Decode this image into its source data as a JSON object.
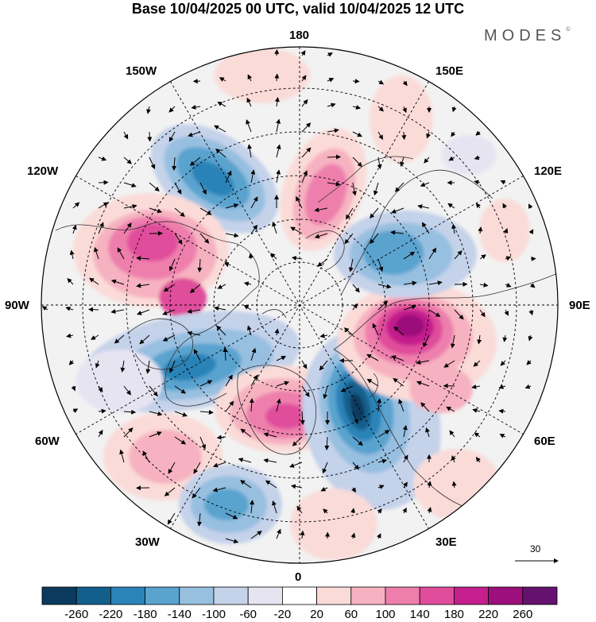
{
  "title": "Base 10/04/2025 00 UTC, valid 10/04/2025 12 UTC",
  "brand": "MODES",
  "brand_mark": "©",
  "map": {
    "projection": "north-polar-stereographic",
    "longitude_labels": {
      "lon_180": "180",
      "lon_150W": "150W",
      "lon_150E": "150E",
      "lon_120W": "120W",
      "lon_120E": "120E",
      "lon_90W": "90W",
      "lon_90E": "90E",
      "lon_60W": "60W",
      "lon_60E": "60E",
      "lon_30W": "30W",
      "lon_30E": "30E",
      "lon_0": "0"
    },
    "wind_vector_reference": "30",
    "anomalies": [
      {
        "region": "near 150W",
        "sign": "negative",
        "peak_class": "-180"
      },
      {
        "region": "near 120W/100W",
        "sign": "positive",
        "peak_class": "180"
      },
      {
        "region": "Hudson Bay / 70W",
        "sign": "negative",
        "peak_class": "-180"
      },
      {
        "region": "Greenland / 10W",
        "sign": "positive",
        "peak_class": "180"
      },
      {
        "region": "North Atlantic 30W",
        "sign": "negative",
        "peak_class": "-140"
      },
      {
        "region": "North Atlantic 50W",
        "sign": "positive",
        "peak_class": "100"
      },
      {
        "region": "Scandinavia / 15E",
        "sign": "negative",
        "peak_class": "-260"
      },
      {
        "region": "Siberia / 90E",
        "sign": "positive",
        "peak_class": "260"
      },
      {
        "region": "Siberia / 130E",
        "sign": "negative",
        "peak_class": "-140"
      },
      {
        "region": "Chukotka / 170E",
        "sign": "positive",
        "peak_class": "180"
      }
    ]
  },
  "colorbar": {
    "labels": [
      "-260",
      "-220",
      "-180",
      "-140",
      "-100",
      "-60",
      "-20",
      "20",
      "60",
      "100",
      "140",
      "180",
      "220",
      "260"
    ],
    "colors": [
      "#0b3a5e",
      "#135f8c",
      "#2b83b8",
      "#5aa3cf",
      "#97bfe0",
      "#c4d2ea",
      "#e7e4f2",
      "#ffffff",
      "#fadbd8",
      "#f6b2c0",
      "#ee7fad",
      "#e04d9b",
      "#c41f8c",
      "#9c0f7c",
      "#65126e"
    ]
  }
}
